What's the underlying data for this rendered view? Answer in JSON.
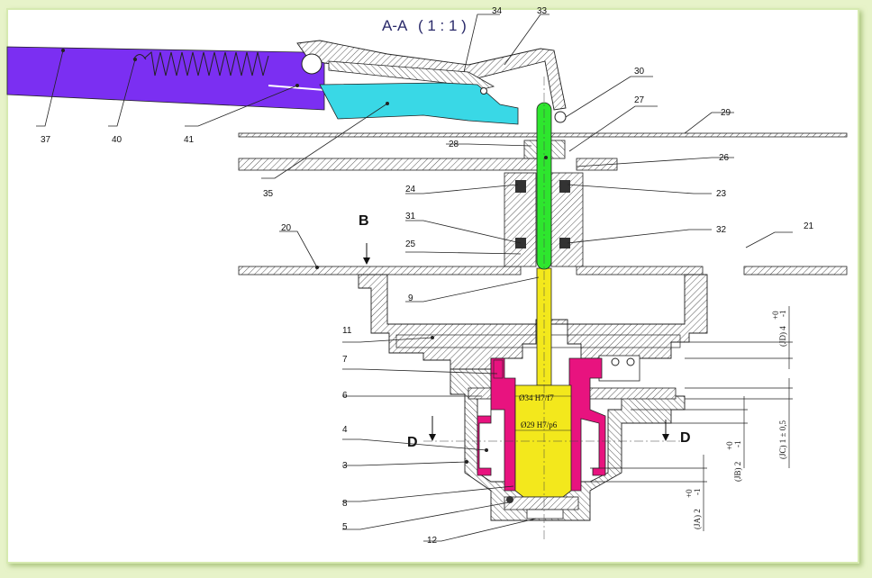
{
  "drawing": {
    "section_title": "A-A",
    "scale": "( 1 : 1 )",
    "section_marks": {
      "b": "B",
      "d": "D"
    },
    "part_numbers": [
      "34",
      "33",
      "30",
      "27",
      "29",
      "37",
      "40",
      "41",
      "28",
      "26",
      "35",
      "24",
      "23",
      "31",
      "20",
      "32",
      "21",
      "25",
      "9",
      "11",
      "7",
      "6",
      "4",
      "3",
      "8",
      "5",
      "12"
    ],
    "fits": {
      "outer": "Ø34 H7/f7",
      "inner": "Ø29 H7/p6"
    },
    "dimensions": {
      "jd": {
        "name": "(JD) 4",
        "tol_up": "+0",
        "tol_low": "-1"
      },
      "jc": {
        "name": "(JC) 1 ± 0,5"
      },
      "jb": {
        "name": "(JB) 2",
        "tol_up": "+0",
        "tol_low": "-1"
      },
      "ja": {
        "name": "(JA) 2",
        "tol_up": "+0",
        "tol_low": "-1"
      }
    },
    "colors": {
      "background": "#e7f3c9",
      "lever": "#7b2ff2",
      "latch": "#39d8e6",
      "rod": "#2ee62e",
      "shaft": "#f3e81c",
      "bushing": "#e8137f",
      "hatch": "#555555"
    }
  }
}
